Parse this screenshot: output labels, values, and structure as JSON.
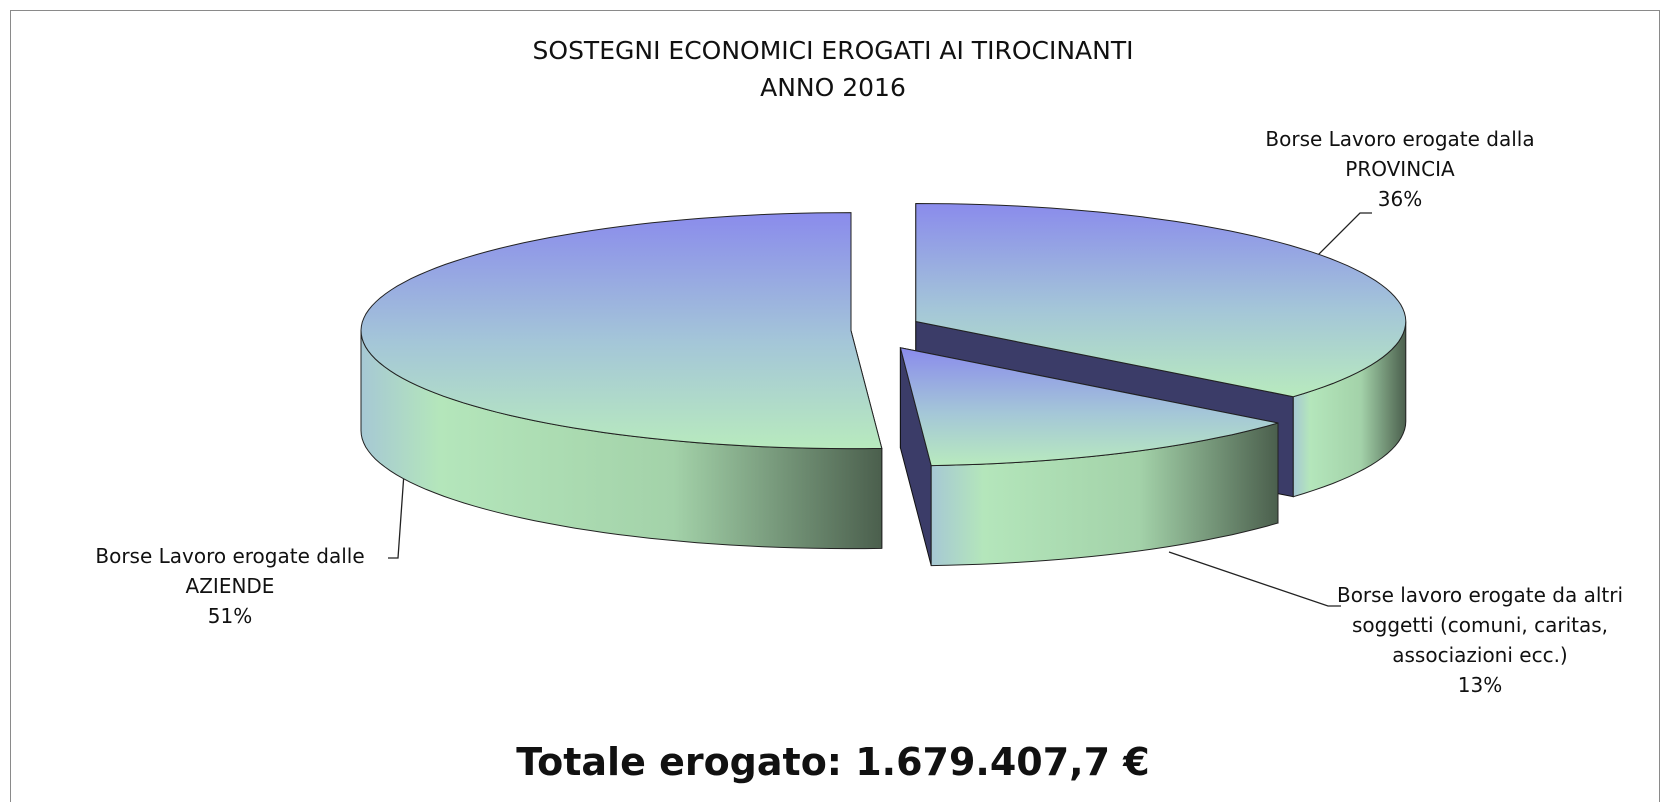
{
  "chart_data": {
    "type": "pie3d",
    "title": [
      "SOSTEGNI ECONOMICI EROGATI AI TIROCINANTI",
      "ANNO 2016"
    ],
    "categories": [
      "Borse Lavoro erogate dalla PROVINCIA",
      "Borse lavoro erogate da altri soggetti (comuni, caritas, associazioni ecc.)",
      "Borse Lavoro erogate dalle AZIENDE"
    ],
    "values": [
      36,
      13,
      51
    ],
    "value_labels": [
      "36%",
      "13%",
      "51%"
    ],
    "annotation": "Totale erogato: 1.679.407,7 €"
  }
}
